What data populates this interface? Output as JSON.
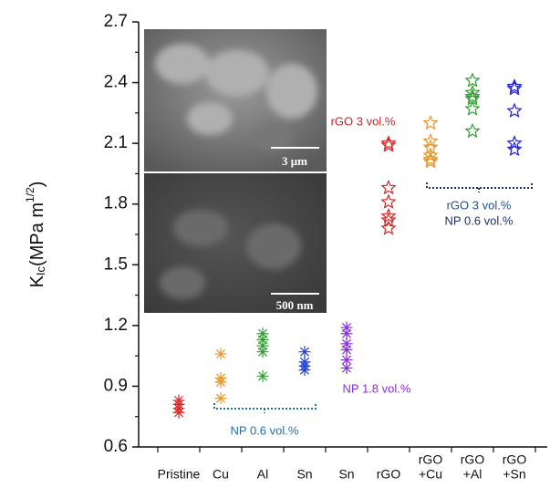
{
  "chart_data": {
    "type": "scatter",
    "y_label": {
      "main": "K",
      "sub": "Ic",
      "text": "(MPa m",
      "sup": "1/2",
      "end": ")"
    },
    "categories": [
      [
        "Pristine"
      ],
      [
        "Cu"
      ],
      [
        "Al"
      ],
      [
        "Sn"
      ],
      [
        "Sn"
      ],
      [
        "rGO"
      ],
      [
        "rGO",
        "+Cu"
      ],
      [
        "rGO",
        "+Al"
      ],
      [
        "rGO",
        "+Sn"
      ]
    ],
    "values": [
      [
        0.83,
        0.81,
        0.79,
        0.77
      ],
      [
        1.06,
        0.94,
        0.92,
        0.84
      ],
      [
        1.16,
        1.13,
        1.1,
        1.07,
        0.95
      ],
      [
        1.07,
        1.02,
        1.0,
        0.98
      ],
      [
        1.19,
        1.16,
        1.11,
        1.08,
        1.03,
        0.99
      ],
      [
        2.1,
        2.09,
        1.88,
        1.81,
        1.74,
        1.72,
        1.68
      ],
      [
        2.2,
        2.11,
        2.08,
        2.04,
        2.02,
        2.01
      ],
      [
        2.41,
        2.35,
        2.33,
        2.32,
        2.27,
        2.16
      ],
      [
        2.38,
        2.37,
        2.26,
        2.1,
        2.07
      ]
    ],
    "colors": [
      "#d62728",
      "#e8962c",
      "#2ca02c",
      "#1f3fd6",
      "#8a2be2",
      "#d62728",
      "#e8962c",
      "#2ca02c",
      "#1f1fd6"
    ],
    "markers": [
      "asterisk",
      "asterisk",
      "asterisk",
      "asterisk",
      "asterisk",
      "star",
      "star",
      "star",
      "star"
    ],
    "ylim": [
      0.6,
      2.7
    ],
    "yticks": [
      0.6,
      0.9,
      1.2,
      1.5,
      1.8,
      2.1,
      2.4,
      2.7
    ],
    "annotations": [
      {
        "text": "rGO 3 vol.%",
        "color": "#c0282a"
      },
      {
        "text": "rGO 3 vol.%",
        "color": "#1f4e9c"
      },
      {
        "text": "NP 0.6 vol.%",
        "color": "#1f2f6e"
      },
      {
        "text": "NP 1.8 vol.%",
        "color": "#8a2be2"
      },
      {
        "text": "NP 0.6 vol.%",
        "color": "#1f6fb4"
      }
    ],
    "insets": [
      {
        "scale_bar": "3 μm"
      },
      {
        "scale_bar": "500 nm"
      }
    ]
  }
}
